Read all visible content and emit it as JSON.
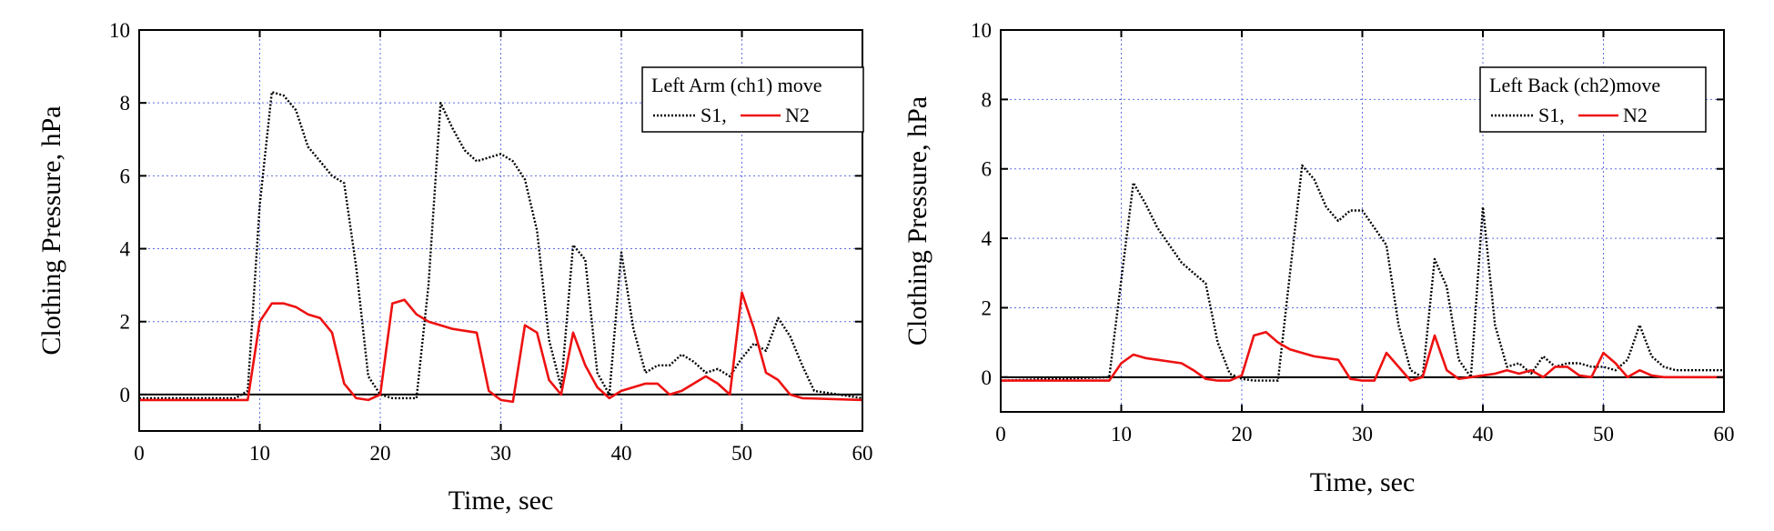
{
  "chart_data": [
    {
      "type": "line",
      "title": "",
      "xlabel": "Time, sec",
      "ylabel": "Clothing Pressure, hPa",
      "xlim": [
        0,
        60
      ],
      "ylim": [
        -1,
        10
      ],
      "xticks": [
        0,
        10,
        20,
        30,
        40,
        50,
        60
      ],
      "yticks": [
        0,
        2,
        4,
        6,
        8,
        10
      ],
      "grid": true,
      "legend_position": "top-right",
      "legend_title": "Left Arm (ch1) move",
      "series": [
        {
          "name": "S1,",
          "color": "#000000",
          "style": "dotted",
          "x": [
            0,
            8,
            9,
            10,
            11,
            12,
            13,
            14,
            15,
            16,
            17,
            18,
            19,
            20,
            21,
            22,
            23,
            24,
            25,
            26,
            27,
            28,
            29,
            30,
            31,
            32,
            33,
            34,
            35,
            36,
            37,
            38,
            39,
            40,
            41,
            42,
            43,
            44,
            45,
            46,
            47,
            48,
            49,
            50,
            51,
            52,
            53,
            54,
            55,
            56,
            60
          ],
          "y": [
            -0.1,
            -0.1,
            0.1,
            5.2,
            8.3,
            8.2,
            7.8,
            6.8,
            6.4,
            6.0,
            5.8,
            3.5,
            0.5,
            0.0,
            -0.1,
            -0.1,
            -0.1,
            3.0,
            8.0,
            7.3,
            6.7,
            6.4,
            6.5,
            6.6,
            6.4,
            5.9,
            4.5,
            1.5,
            0.2,
            4.1,
            3.7,
            0.6,
            0.0,
            3.9,
            1.8,
            0.6,
            0.8,
            0.8,
            1.1,
            0.9,
            0.6,
            0.7,
            0.5,
            1.0,
            1.4,
            1.2,
            2.1,
            1.6,
            0.8,
            0.1,
            -0.1
          ]
        },
        {
          "name": "N2",
          "color": "#ee1111",
          "style": "solid",
          "x": [
            0,
            9,
            10,
            11,
            12,
            13,
            14,
            15,
            16,
            17,
            18,
            19,
            20,
            21,
            22,
            23,
            24,
            25,
            26,
            27,
            28,
            29,
            30,
            31,
            32,
            33,
            34,
            35,
            36,
            37,
            38,
            39,
            40,
            41,
            42,
            43,
            44,
            45,
            46,
            47,
            48,
            49,
            50,
            51,
            52,
            53,
            54,
            55,
            60
          ],
          "y": [
            -0.15,
            -0.15,
            2.0,
            2.5,
            2.5,
            2.4,
            2.2,
            2.1,
            1.7,
            0.3,
            -0.1,
            -0.15,
            0.0,
            2.5,
            2.6,
            2.2,
            2.0,
            1.9,
            1.8,
            1.75,
            1.7,
            0.1,
            -0.15,
            -0.2,
            1.9,
            1.7,
            0.4,
            0.0,
            1.7,
            0.8,
            0.2,
            -0.1,
            0.1,
            0.2,
            0.3,
            0.3,
            0.0,
            0.1,
            0.3,
            0.5,
            0.3,
            0.0,
            2.8,
            1.8,
            0.6,
            0.4,
            0.0,
            -0.1,
            -0.15
          ]
        }
      ]
    },
    {
      "type": "line",
      "title": "",
      "xlabel": "Time, sec",
      "ylabel": "Clothing Pressure, hPa",
      "xlim": [
        0,
        60
      ],
      "ylim": [
        -1,
        10
      ],
      "xticks": [
        0,
        10,
        20,
        30,
        40,
        50,
        60
      ],
      "yticks": [
        0,
        2,
        4,
        6,
        8,
        10
      ],
      "grid": true,
      "legend_position": "top-right",
      "legend_title": "Left Back (ch2)move",
      "series": [
        {
          "name": "S1,",
          "color": "#000000",
          "style": "dotted",
          "x": [
            0,
            9,
            10,
            11,
            12,
            13,
            14,
            15,
            16,
            17,
            18,
            19,
            20,
            21,
            22,
            23,
            24,
            25,
            26,
            27,
            28,
            29,
            30,
            31,
            32,
            33,
            34,
            35,
            36,
            37,
            38,
            39,
            40,
            41,
            42,
            43,
            44,
            45,
            46,
            47,
            48,
            49,
            50,
            51,
            52,
            53,
            54,
            55,
            56,
            60
          ],
          "y": [
            -0.1,
            0.0,
            2.8,
            5.6,
            5.0,
            4.3,
            3.8,
            3.3,
            3.0,
            2.7,
            1.0,
            0.1,
            -0.05,
            -0.1,
            -0.1,
            -0.1,
            3.0,
            6.1,
            5.7,
            4.9,
            4.5,
            4.8,
            4.8,
            4.3,
            3.8,
            1.5,
            0.2,
            0.0,
            3.4,
            2.6,
            0.5,
            0.0,
            4.9,
            1.5,
            0.3,
            0.4,
            0.1,
            0.6,
            0.3,
            0.4,
            0.4,
            0.3,
            0.3,
            0.2,
            0.5,
            1.5,
            0.6,
            0.3,
            0.2,
            0.2
          ]
        },
        {
          "name": "N2",
          "color": "#ee1111",
          "style": "solid",
          "x": [
            0,
            9,
            10,
            11,
            12,
            13,
            14,
            15,
            16,
            17,
            18,
            19,
            20,
            21,
            22,
            23,
            24,
            25,
            26,
            27,
            28,
            29,
            30,
            31,
            32,
            33,
            34,
            35,
            36,
            37,
            38,
            39,
            40,
            41,
            42,
            43,
            44,
            45,
            46,
            47,
            48,
            49,
            50,
            51,
            52,
            53,
            54,
            55,
            60
          ],
          "y": [
            -0.1,
            -0.1,
            0.4,
            0.65,
            0.55,
            0.5,
            0.45,
            0.4,
            0.2,
            -0.05,
            -0.1,
            -0.1,
            0.05,
            1.2,
            1.3,
            1.0,
            0.8,
            0.7,
            0.6,
            0.55,
            0.5,
            -0.05,
            -0.1,
            -0.1,
            0.7,
            0.3,
            -0.1,
            0.0,
            1.2,
            0.2,
            -0.05,
            0.0,
            0.05,
            0.1,
            0.2,
            0.1,
            0.2,
            0.0,
            0.3,
            0.3,
            0.05,
            0.0,
            0.7,
            0.4,
            0.0,
            0.2,
            0.05,
            0.0,
            0.0
          ]
        }
      ]
    }
  ]
}
